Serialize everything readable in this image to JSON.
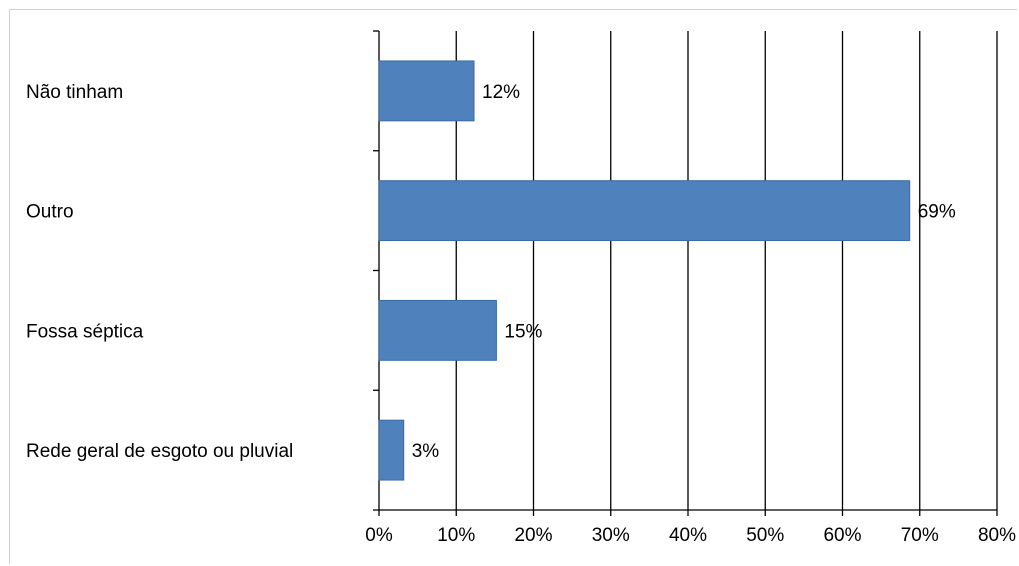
{
  "chart_data": {
    "type": "bar",
    "orientation": "horizontal",
    "title": "",
    "xlabel": "",
    "ylabel": "",
    "categories": [
      "Não tinham",
      "Outro",
      "Fossa séptica",
      "Rede geral de esgoto ou pluvial"
    ],
    "values": [
      12.3,
      68.7,
      15.2,
      3.2
    ],
    "data_labels": [
      "12%",
      "69%",
      "15%",
      "3%"
    ],
    "xlim": [
      0,
      80
    ],
    "x_ticks": [
      0,
      10,
      20,
      30,
      40,
      50,
      60,
      70,
      80
    ],
    "x_tick_labels": [
      "0%",
      "10%",
      "20%",
      "30%",
      "40%",
      "50%",
      "60%",
      "70%",
      "80%"
    ],
    "grid": true,
    "legend": "none",
    "colors": {
      "bar": "#4F81BD",
      "bar_edge": "#3A6BA5",
      "grid": "#000000",
      "axis": "#000000"
    }
  }
}
